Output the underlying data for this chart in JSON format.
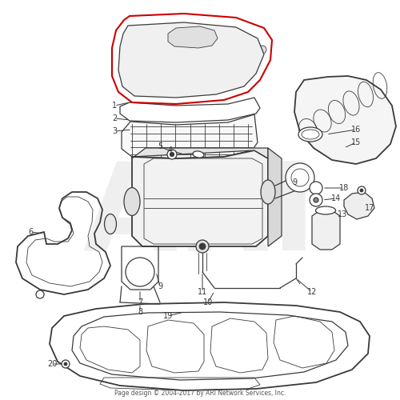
{
  "figsize": [
    5.0,
    5.0
  ],
  "dpi": 100,
  "bg_color": "#ffffff",
  "line_color": "#3a3a3a",
  "red_color": "#cc0000",
  "label_color": "#1a1a1a",
  "footer": "Page design © 2004-2017 by ARI Network Services, Inc.",
  "watermark": "ARI",
  "watermark_color": "#cccccc",
  "lw_main": 1.3,
  "lw_med": 0.9,
  "lw_thin": 0.6,
  "label_fs": 7.0
}
